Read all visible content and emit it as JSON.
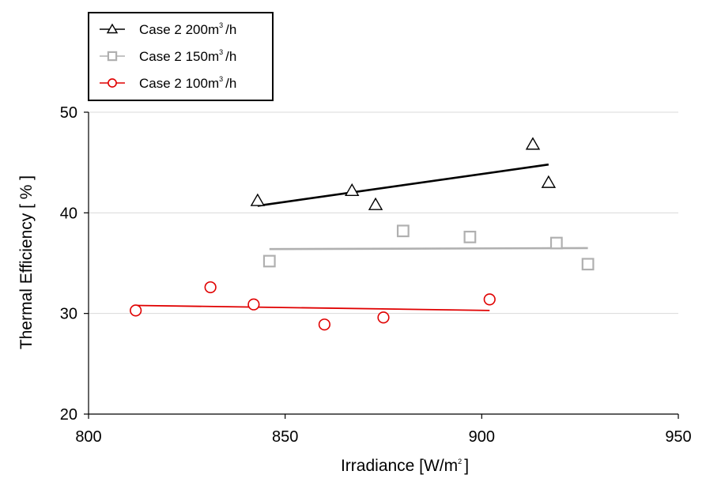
{
  "chart_data": {
    "type": "scatter",
    "xlabel": "Irradiance [W/m",
    "xlabel_sup": "2",
    "xlabel_end": "]",
    "ylabel": "Thermal Efficiency [ % ]",
    "xlim": [
      800,
      950
    ],
    "ylim": [
      20,
      50
    ],
    "x_ticks": [
      "800",
      "850",
      "900",
      "950"
    ],
    "y_ticks": [
      "20",
      "30",
      "40",
      "50"
    ],
    "grid": "horizontal",
    "legend_position": "top-left",
    "series": [
      {
        "name": "Case 2 200m",
        "name_sup": "3",
        "name_end": "/h",
        "marker": "triangle",
        "color": "#000000",
        "x": [
          843,
          867,
          873,
          913,
          917
        ],
        "y": [
          41.2,
          42.2,
          40.8,
          46.8,
          43.0
        ],
        "trend": {
          "x": [
            843,
            917
          ],
          "y": [
            40.7,
            44.8
          ]
        }
      },
      {
        "name": "Case 2 150m",
        "name_sup": "3",
        "name_end": "/h",
        "marker": "square",
        "color": "#b0b0b0",
        "x": [
          846,
          880,
          897,
          919,
          927
        ],
        "y": [
          35.2,
          38.2,
          37.6,
          37.0,
          34.9
        ],
        "trend": {
          "x": [
            846,
            927
          ],
          "y": [
            36.4,
            36.5
          ]
        }
      },
      {
        "name": "Case 2 100m",
        "name_sup": "3",
        "name_end": "/h",
        "marker": "circle",
        "color": "#e00000",
        "x": [
          812,
          831,
          842,
          860,
          875,
          902
        ],
        "y": [
          30.3,
          32.6,
          30.9,
          28.9,
          29.6,
          31.4
        ],
        "trend": {
          "x": [
            812,
            902
          ],
          "y": [
            30.8,
            30.3
          ]
        }
      }
    ]
  }
}
